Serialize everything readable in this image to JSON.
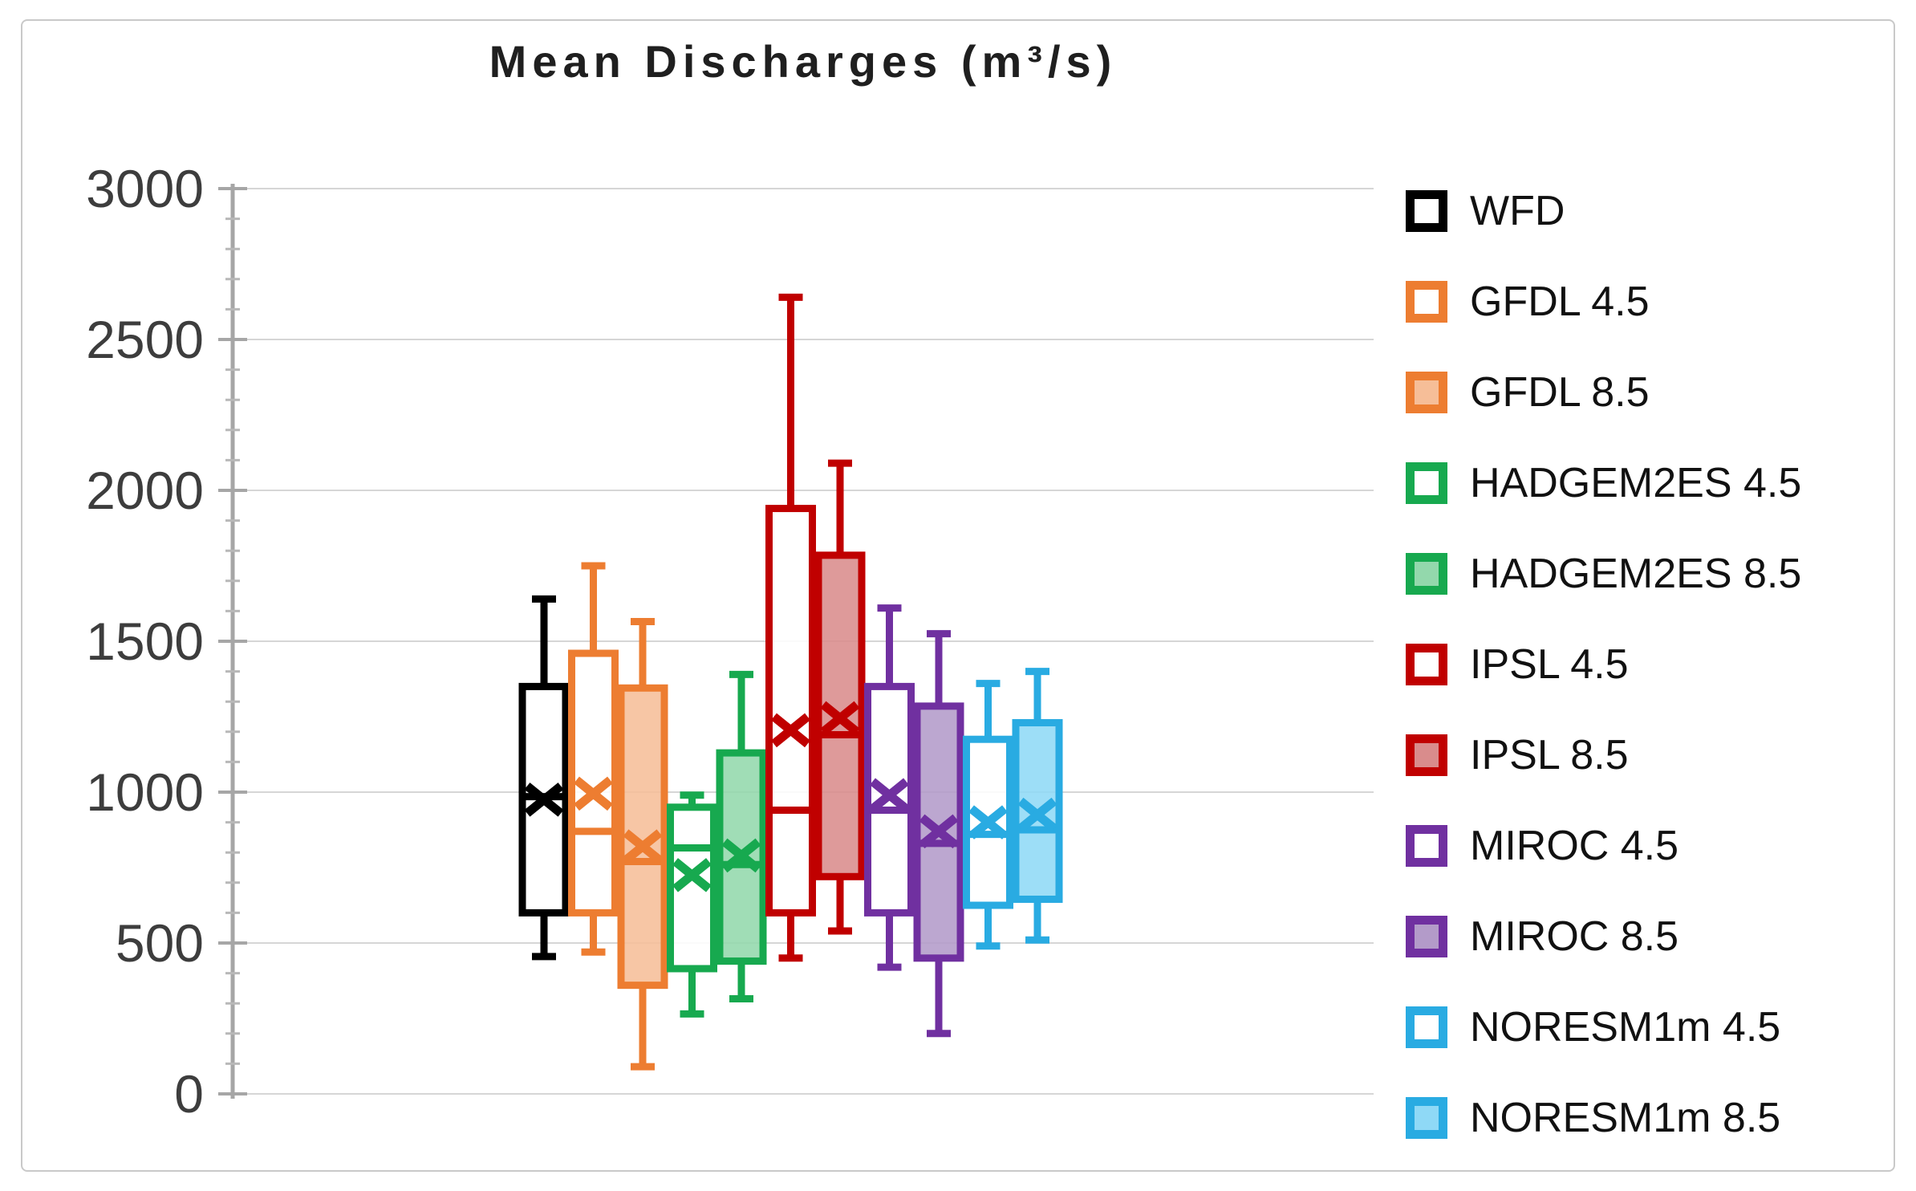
{
  "title": "Mean Discharges (m³/s)",
  "y_axis": {
    "min": 0,
    "max": 3000,
    "major_step": 500,
    "minor_step": 100,
    "tick_labels": [
      "0",
      "500",
      "1000",
      "1500",
      "2000",
      "2500",
      "3000"
    ]
  },
  "legend_position": "right",
  "chart_data": {
    "type": "boxplot",
    "title": "Mean Discharges (m³/s)",
    "xlabel": "",
    "ylabel": "",
    "ylim": [
      0,
      3000
    ],
    "grid": true,
    "legend_position": "right",
    "series": [
      {
        "name": "WFD",
        "color": "#000000",
        "fill": "#ffffff",
        "min": 455,
        "q1": 600,
        "median": 985,
        "mean": 975,
        "q3": 1350,
        "max": 1640
      },
      {
        "name": "GFDL 4.5",
        "color": "#ED7D31",
        "fill": "#ffffff",
        "min": 470,
        "q1": 600,
        "median": 870,
        "mean": 995,
        "q3": 1460,
        "max": 1750
      },
      {
        "name": "GFDL 8.5",
        "color": "#ED7D31",
        "fill": "#F6BE98",
        "min": 90,
        "q1": 360,
        "median": 770,
        "mean": 820,
        "q3": 1345,
        "max": 1565
      },
      {
        "name": "HADGEM2ES 4.5",
        "color": "#17A94F",
        "fill": "#ffffff",
        "min": 265,
        "q1": 415,
        "median": 815,
        "mean": 725,
        "q3": 950,
        "max": 990
      },
      {
        "name": "HADGEM2ES 8.5",
        "color": "#17A94F",
        "fill": "#93D8AC",
        "min": 315,
        "q1": 440,
        "median": 760,
        "mean": 790,
        "q3": 1130,
        "max": 1390
      },
      {
        "name": "IPSL 4.5",
        "color": "#C00000",
        "fill": "#ffffff",
        "min": 450,
        "q1": 600,
        "median": 940,
        "mean": 1205,
        "q3": 1940,
        "max": 2640
      },
      {
        "name": "IPSL 8.5",
        "color": "#C00000",
        "fill": "#D98C8C",
        "min": 540,
        "q1": 720,
        "median": 1190,
        "mean": 1245,
        "q3": 1785,
        "max": 2090
      },
      {
        "name": "MIROC 4.5",
        "color": "#7030A0",
        "fill": "#ffffff",
        "min": 420,
        "q1": 600,
        "median": 940,
        "mean": 990,
        "q3": 1350,
        "max": 1610
      },
      {
        "name": "MIROC 8.5",
        "color": "#7030A0",
        "fill": "#B39BC9",
        "min": 200,
        "q1": 450,
        "median": 830,
        "mean": 870,
        "q3": 1285,
        "max": 1525
      },
      {
        "name": "NORESM1m 4.5",
        "color": "#29ABE2",
        "fill": "#ffffff",
        "min": 490,
        "q1": 625,
        "median": 860,
        "mean": 900,
        "q3": 1175,
        "max": 1360
      },
      {
        "name": "NORESM1m 8.5",
        "color": "#29ABE2",
        "fill": "#8FD9F6",
        "min": 510,
        "q1": 645,
        "median": 875,
        "mean": 925,
        "q3": 1230,
        "max": 1400
      }
    ]
  }
}
